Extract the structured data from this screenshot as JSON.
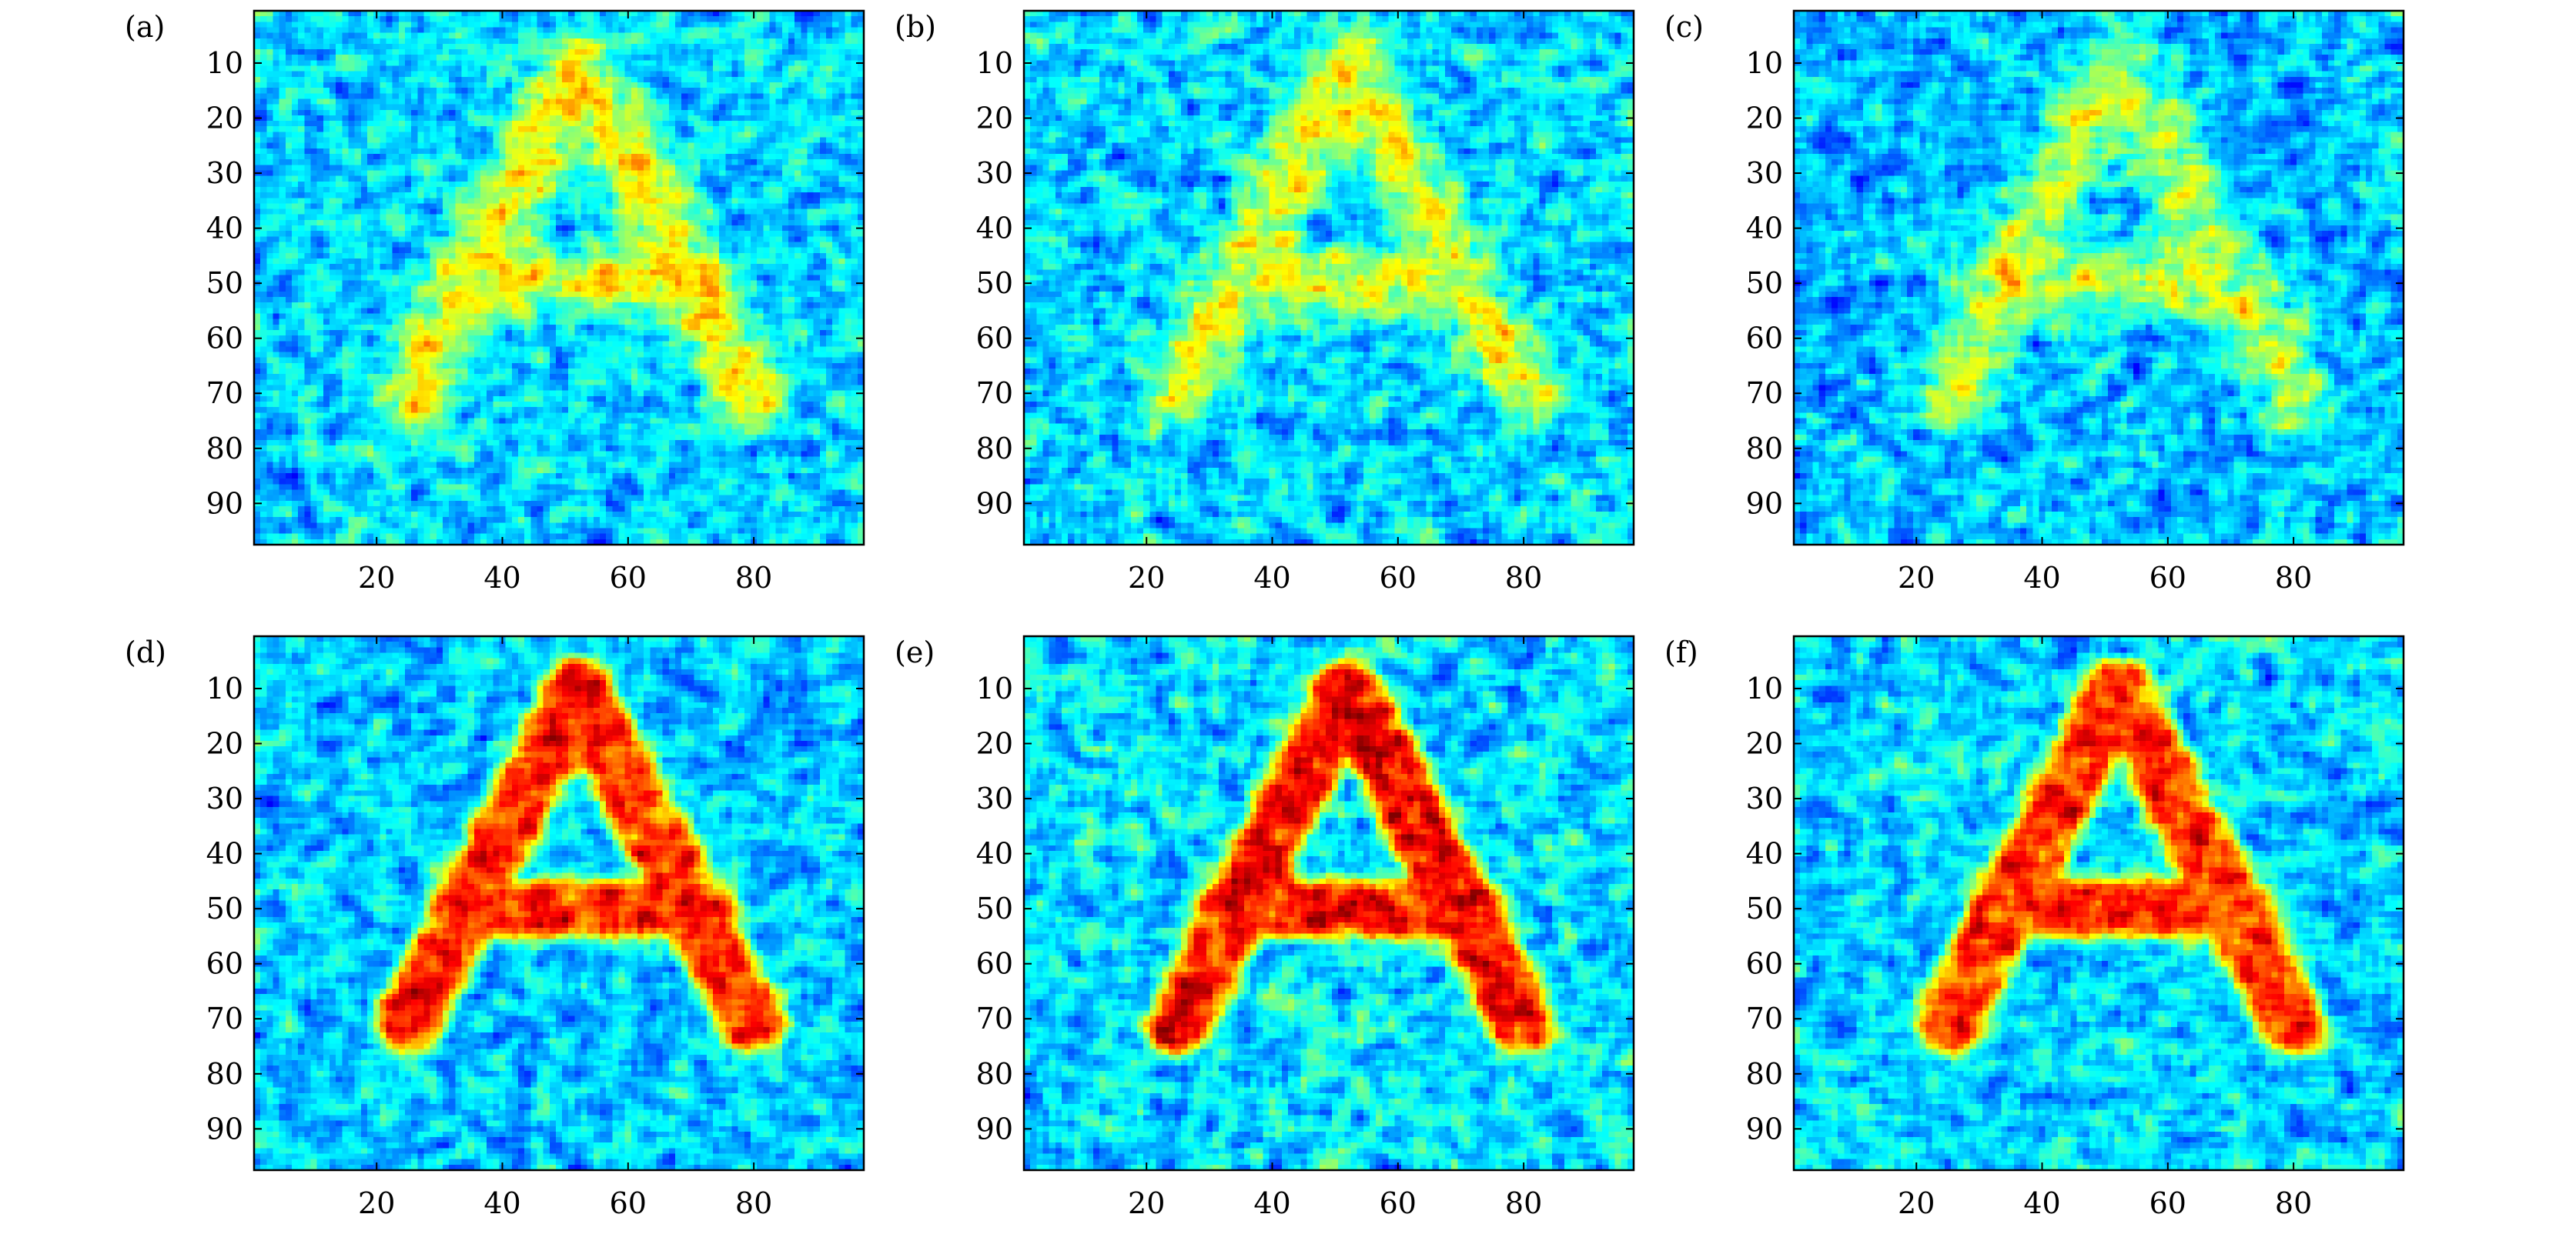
{
  "chart_data": [
    {
      "type": "heatmap",
      "panel_label": "(a)",
      "pattern": "letter-A",
      "snr": 0.55,
      "blur": 1.6,
      "xlim": [
        1,
        97
      ],
      "ylim": [
        1,
        97
      ],
      "xticks": [
        20,
        40,
        60,
        80
      ],
      "yticks": [
        10,
        20,
        30,
        40,
        50,
        60,
        70,
        80,
        90
      ],
      "colormap": "jet",
      "grid": false
    },
    {
      "type": "heatmap",
      "panel_label": "(b)",
      "pattern": "letter-A",
      "snr": 0.5,
      "blur": 1.5,
      "xlim": [
        1,
        97
      ],
      "ylim": [
        1,
        97
      ],
      "xticks": [
        20,
        40,
        60,
        80
      ],
      "yticks": [
        10,
        20,
        30,
        40,
        50,
        60,
        70,
        80,
        90
      ],
      "colormap": "jet",
      "grid": false
    },
    {
      "type": "heatmap",
      "panel_label": "(c)",
      "pattern": "letter-A",
      "snr": 0.45,
      "blur": 1.4,
      "xlim": [
        1,
        97
      ],
      "ylim": [
        1,
        97
      ],
      "xticks": [
        20,
        40,
        60,
        80
      ],
      "yticks": [
        10,
        20,
        30,
        40,
        50,
        60,
        70,
        80,
        90
      ],
      "colormap": "jet",
      "grid": false
    },
    {
      "type": "heatmap",
      "panel_label": "(d)",
      "pattern": "letter-A",
      "snr": 1.0,
      "blur": 0.6,
      "xlim": [
        1,
        97
      ],
      "ylim": [
        1,
        97
      ],
      "xticks": [
        20,
        40,
        60,
        80
      ],
      "yticks": [
        10,
        20,
        30,
        40,
        50,
        60,
        70,
        80,
        90
      ],
      "colormap": "jet",
      "grid": false
    },
    {
      "type": "heatmap",
      "panel_label": "(e)",
      "pattern": "letter-A",
      "snr": 1.0,
      "blur": 0.6,
      "xlim": [
        1,
        97
      ],
      "ylim": [
        1,
        97
      ],
      "xticks": [
        20,
        40,
        60,
        80
      ],
      "yticks": [
        10,
        20,
        30,
        40,
        50,
        60,
        70,
        80,
        90
      ],
      "colormap": "jet",
      "grid": false
    },
    {
      "type": "heatmap",
      "panel_label": "(f)",
      "pattern": "letter-A",
      "snr": 0.95,
      "blur": 0.6,
      "xlim": [
        1,
        97
      ],
      "ylim": [
        1,
        97
      ],
      "xticks": [
        20,
        40,
        60,
        80
      ],
      "yticks": [
        10,
        20,
        30,
        40,
        50,
        60,
        70,
        80,
        90
      ],
      "colormap": "jet",
      "grid": false
    }
  ]
}
